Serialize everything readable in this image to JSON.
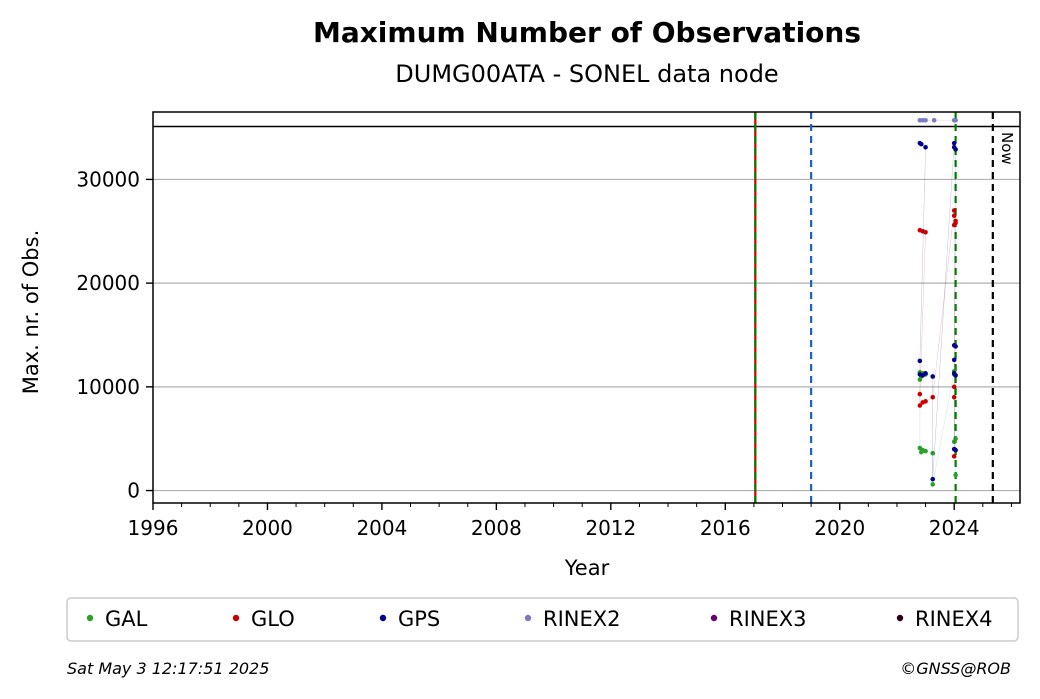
{
  "chart_data": {
    "type": "scatter",
    "title": "Maximum Number of Observations",
    "subtitle": "DUMG00ATA - SONEL data node",
    "xlabel": "Year",
    "ylabel": "Max. nr. of Obs.",
    "xlim": [
      1996,
      2026.3
    ],
    "ylim": [
      -1200,
      36500
    ],
    "xticks": [
      1996,
      2000,
      2004,
      2008,
      2012,
      2016,
      2020,
      2024
    ],
    "yticks": [
      0,
      10000,
      20000,
      30000
    ],
    "grid": "horizontal",
    "legend_position": "bottom",
    "hline": 35100,
    "vlines": [
      {
        "x": 2017.05,
        "style": "dashed",
        "colors": [
          "#008000",
          "#cc0000"
        ]
      },
      {
        "x": 2019.0,
        "style": "dashed",
        "colors": [
          "#1f5fbf"
        ]
      },
      {
        "x": 2024.05,
        "style": "dashed",
        "colors": [
          "#008000"
        ]
      },
      {
        "x": 2025.35,
        "style": "dashed",
        "colors": [
          "#000000"
        ],
        "label": "Now"
      }
    ],
    "series": [
      {
        "name": "GAL",
        "color": "#2ca02c",
        "points": [
          [
            2022.8,
            11400
          ],
          [
            2022.85,
            11000
          ],
          [
            2022.9,
            11300
          ],
          [
            2023.0,
            11200
          ],
          [
            2022.8,
            10700
          ],
          [
            2022.8,
            4100
          ],
          [
            2022.85,
            3700
          ],
          [
            2022.9,
            3900
          ],
          [
            2023.0,
            3800
          ],
          [
            2023.25,
            3600
          ],
          [
            2023.25,
            600
          ],
          [
            2024.0,
            11500
          ],
          [
            2024.0,
            11200
          ],
          [
            2024.0,
            4700
          ],
          [
            2024.05,
            5000
          ],
          [
            2024.05,
            1500
          ]
        ]
      },
      {
        "name": "GLO",
        "color": "#cc0000",
        "points": [
          [
            2022.8,
            25100
          ],
          [
            2022.9,
            25000
          ],
          [
            2023.0,
            24900
          ],
          [
            2022.8,
            9300
          ],
          [
            2022.8,
            8200
          ],
          [
            2022.9,
            8500
          ],
          [
            2023.0,
            8600
          ],
          [
            2023.25,
            9000
          ],
          [
            2024.0,
            27000
          ],
          [
            2024.0,
            26500
          ],
          [
            2024.05,
            26000
          ],
          [
            2024.0,
            25600
          ],
          [
            2024.05,
            25800
          ],
          [
            2024.0,
            10000
          ],
          [
            2024.0,
            9000
          ],
          [
            2024.0,
            3300
          ]
        ]
      },
      {
        "name": "GPS",
        "color": "#00008b",
        "points": [
          [
            2022.8,
            33500
          ],
          [
            2022.85,
            33400
          ],
          [
            2023.0,
            33100
          ],
          [
            2022.8,
            12500
          ],
          [
            2022.8,
            11200
          ],
          [
            2022.9,
            11100
          ],
          [
            2023.0,
            11300
          ],
          [
            2023.25,
            11000
          ],
          [
            2023.25,
            1100
          ],
          [
            2024.0,
            33500
          ],
          [
            2024.0,
            33100
          ],
          [
            2024.05,
            32900
          ],
          [
            2024.0,
            14000
          ],
          [
            2024.05,
            13900
          ],
          [
            2024.0,
            12600
          ],
          [
            2024.0,
            11300
          ],
          [
            2024.05,
            11100
          ],
          [
            2024.0,
            4000
          ],
          [
            2024.05,
            3900
          ]
        ]
      },
      {
        "name": "RINEX2",
        "color": "#7b7bbf",
        "points": [
          [
            2022.8,
            35700
          ],
          [
            2022.9,
            35700
          ],
          [
            2023.0,
            35700
          ],
          [
            2023.3,
            35700
          ],
          [
            2024.0,
            35700
          ],
          [
            2024.05,
            35700
          ]
        ]
      },
      {
        "name": "RINEX3",
        "color": "#6a006a",
        "points": []
      },
      {
        "name": "RINEX4",
        "color": "#2b0018",
        "points": []
      }
    ]
  },
  "footer": {
    "timestamp": "Sat May  3 12:17:51 2025",
    "copyright": "©GNSS@ROB"
  }
}
